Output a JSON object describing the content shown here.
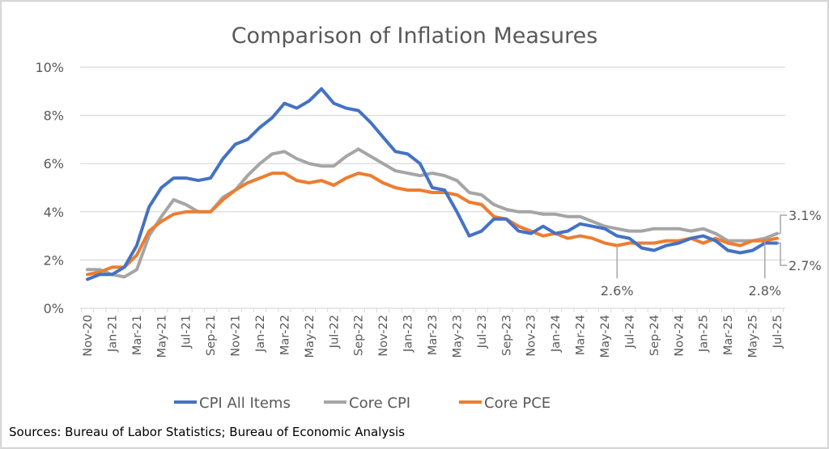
{
  "chart_data": {
    "type": "line",
    "title": "Comparison of Inflation Measures",
    "xlabel": "",
    "ylabel": "",
    "ylim": [
      0,
      10
    ],
    "yticks": [
      "0%",
      "2%",
      "4%",
      "6%",
      "8%",
      "10%"
    ],
    "ytick_values": [
      0,
      2,
      4,
      6,
      8,
      10
    ],
    "grid": true,
    "legend_position": "bottom",
    "x": [
      "Nov-20",
      "Dec-20",
      "Jan-21",
      "Feb-21",
      "Mar-21",
      "Apr-21",
      "May-21",
      "Jun-21",
      "Jul-21",
      "Aug-21",
      "Sep-21",
      "Oct-21",
      "Nov-21",
      "Dec-21",
      "Jan-22",
      "Feb-22",
      "Mar-22",
      "Apr-22",
      "May-22",
      "Jun-22",
      "Jul-22",
      "Aug-22",
      "Sep-22",
      "Oct-22",
      "Nov-22",
      "Dec-22",
      "Jan-23",
      "Feb-23",
      "Mar-23",
      "Apr-23",
      "May-23",
      "Jun-23",
      "Jul-23",
      "Aug-23",
      "Sep-23",
      "Oct-23",
      "Nov-23",
      "Dec-23",
      "Jan-24",
      "Feb-24",
      "Mar-24",
      "Apr-24",
      "May-24",
      "Jun-24",
      "Jul-24",
      "Aug-24",
      "Sep-24",
      "Oct-24",
      "Nov-24",
      "Dec-24",
      "Jan-25",
      "Feb-25",
      "Mar-25",
      "Apr-25",
      "May-25",
      "Jun-25",
      "Jul-25"
    ],
    "xtick_labels": [
      "Nov-20",
      "Jan-21",
      "Mar-21",
      "May-21",
      "Jul-21",
      "Sep-21",
      "Nov-21",
      "Jan-22",
      "Mar-22",
      "May-22",
      "Jul-22",
      "Sep-22",
      "Nov-22",
      "Jan-23",
      "Mar-23",
      "May-23",
      "Jul-23",
      "Sep-23",
      "Nov-23",
      "Jan-24",
      "Mar-24",
      "May-24",
      "Jul-24",
      "Sep-24",
      "Nov-24",
      "Jan-25",
      "Mar-25",
      "May-25",
      "Jul-25"
    ],
    "series": [
      {
        "name": "CPI All Items",
        "color": "#4472C4",
        "values": [
          1.2,
          1.4,
          1.4,
          1.7,
          2.6,
          4.2,
          5.0,
          5.4,
          5.4,
          5.3,
          5.4,
          6.2,
          6.8,
          7.0,
          7.5,
          7.9,
          8.5,
          8.3,
          8.6,
          9.1,
          8.5,
          8.3,
          8.2,
          7.7,
          7.1,
          6.5,
          6.4,
          6.0,
          5.0,
          4.9,
          4.0,
          3.0,
          3.2,
          3.7,
          3.7,
          3.2,
          3.1,
          3.4,
          3.1,
          3.2,
          3.5,
          3.4,
          3.3,
          3.0,
          2.9,
          2.5,
          2.4,
          2.6,
          2.7,
          2.9,
          3.0,
          2.8,
          2.4,
          2.3,
          2.4,
          2.7,
          2.7
        ]
      },
      {
        "name": "Core CPI",
        "color": "#A5A5A5",
        "values": [
          1.6,
          1.6,
          1.4,
          1.3,
          1.6,
          3.0,
          3.8,
          4.5,
          4.3,
          4.0,
          4.0,
          4.6,
          4.9,
          5.5,
          6.0,
          6.4,
          6.5,
          6.2,
          6.0,
          5.9,
          5.9,
          6.3,
          6.6,
          6.3,
          6.0,
          5.7,
          5.6,
          5.5,
          5.6,
          5.5,
          5.3,
          4.8,
          4.7,
          4.3,
          4.1,
          4.0,
          4.0,
          3.9,
          3.9,
          3.8,
          3.8,
          3.6,
          3.4,
          3.3,
          3.2,
          3.2,
          3.3,
          3.3,
          3.3,
          3.2,
          3.3,
          3.1,
          2.8,
          2.8,
          2.8,
          2.9,
          3.1
        ]
      },
      {
        "name": "Core PCE",
        "color": "#ED7D31",
        "values": [
          1.4,
          1.5,
          1.7,
          1.7,
          2.2,
          3.2,
          3.6,
          3.9,
          4.0,
          4.0,
          4.0,
          4.5,
          4.9,
          5.2,
          5.4,
          5.6,
          5.6,
          5.3,
          5.2,
          5.3,
          5.1,
          5.4,
          5.6,
          5.5,
          5.2,
          5.0,
          4.9,
          4.9,
          4.8,
          4.8,
          4.7,
          4.4,
          4.3,
          3.8,
          3.7,
          3.4,
          3.2,
          3.0,
          3.1,
          2.9,
          3.0,
          2.9,
          2.7,
          2.6,
          2.7,
          2.7,
          2.7,
          2.8,
          2.8,
          2.9,
          2.7,
          2.9,
          2.7,
          2.6,
          2.8,
          2.8,
          2.9
        ]
      }
    ],
    "annotations": [
      {
        "label": "3.1%",
        "series": "Core CPI",
        "x": "Jul-25",
        "value": 3.1
      },
      {
        "label": "2.7%",
        "series": "CPI All Items",
        "x": "Jul-25",
        "value": 2.7
      },
      {
        "label": "2.6%",
        "series": "Core PCE",
        "x": "Jun-24",
        "value": 2.6
      },
      {
        "label": "2.8%",
        "series": "Core PCE",
        "x": "Jun-25",
        "value": 2.8
      }
    ],
    "source": "Sources: Bureau of Labor Statistics; Bureau of Economic Analysis"
  }
}
